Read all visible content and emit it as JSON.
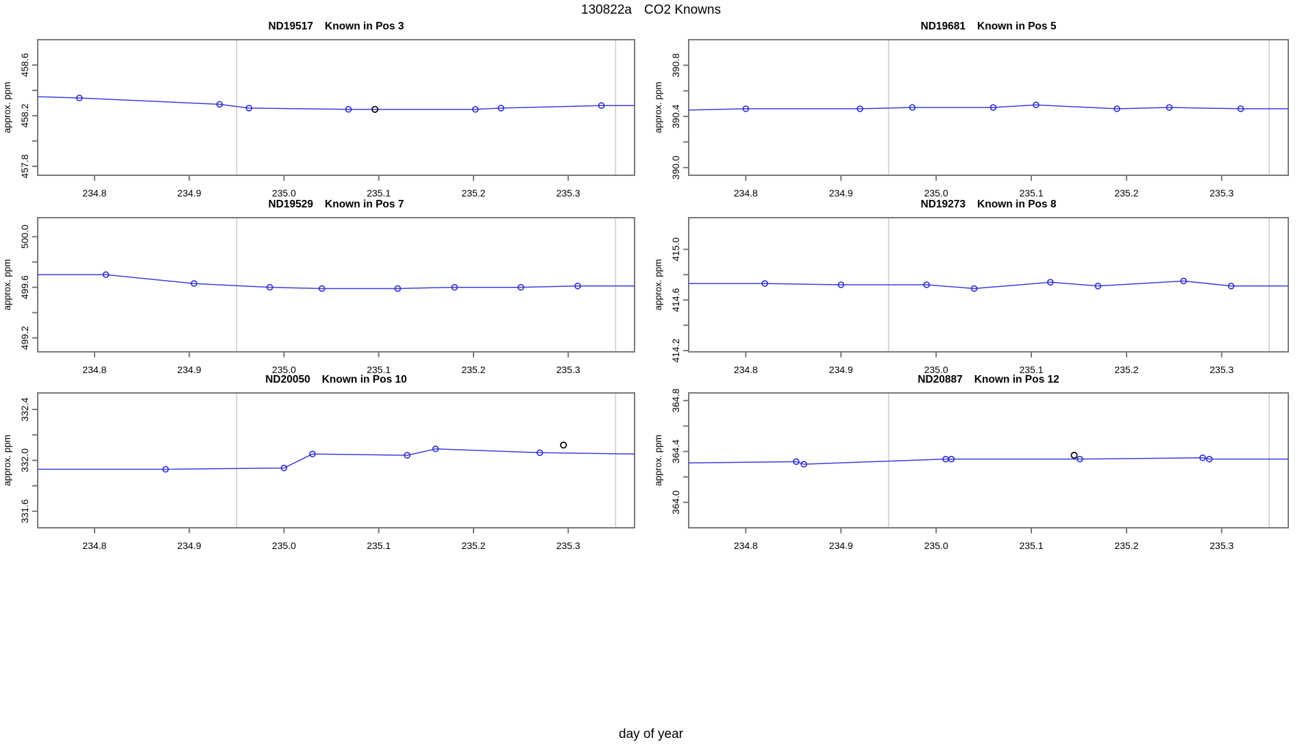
{
  "figure_title": {
    "run_id": "130822a",
    "text": "CO2 Knowns"
  },
  "figure_xlabel": "day of year",
  "colors": {
    "series_line": "#3b3bdf",
    "series_marker": "#2a2ad0",
    "highlight_marker": "#000000",
    "grid_vline": "#cdcdcd",
    "panel_border": "#787878",
    "tick_text": "#000000"
  },
  "chart_data": [
    {
      "type": "line",
      "instrument": "ND19517",
      "title_label": "Known in Pos 3",
      "ylabel": "approx. ppm",
      "xlim": [
        234.74,
        235.37
      ],
      "ylim": [
        457.73,
        458.8
      ],
      "xticks": [
        234.8,
        234.9,
        235.0,
        235.1,
        235.2,
        235.3
      ],
      "yticks_major": [
        457.8,
        458.2,
        458.6
      ],
      "yticks_minor": [
        458.0,
        458.4
      ],
      "vlines": [
        234.95,
        235.35
      ],
      "line": [
        [
          234.74,
          458.35
        ],
        [
          234.784,
          458.34
        ],
        [
          234.932,
          458.29
        ],
        [
          234.963,
          458.26
        ],
        [
          235.068,
          458.25
        ],
        [
          235.096,
          458.25
        ],
        [
          235.202,
          458.25
        ],
        [
          235.229,
          458.26
        ],
        [
          235.335,
          458.28
        ],
        [
          235.37,
          458.28
        ]
      ],
      "markers": [
        [
          234.784,
          458.34
        ],
        [
          234.932,
          458.29
        ],
        [
          234.963,
          458.26
        ],
        [
          235.068,
          458.25
        ],
        [
          235.202,
          458.25
        ],
        [
          235.229,
          458.26
        ],
        [
          235.335,
          458.28
        ]
      ],
      "black_markers": [
        [
          235.096,
          458.25
        ]
      ]
    },
    {
      "type": "line",
      "instrument": "ND19681",
      "title_label": "Known in Pos 5",
      "ylabel": "approx. ppm",
      "xlim": [
        234.74,
        235.37
      ],
      "ylim": [
        389.94,
        391.0
      ],
      "xticks": [
        234.8,
        234.9,
        235.0,
        235.1,
        235.2,
        235.3
      ],
      "yticks_major": [
        390.0,
        390.4,
        390.8
      ],
      "yticks_minor": [
        390.2,
        390.6
      ],
      "vlines": [
        234.95,
        235.35
      ],
      "line": [
        [
          234.74,
          390.45
        ],
        [
          234.8,
          390.46
        ],
        [
          234.92,
          390.46
        ],
        [
          234.975,
          390.47
        ],
        [
          235.06,
          390.47
        ],
        [
          235.105,
          390.49
        ],
        [
          235.19,
          390.46
        ],
        [
          235.245,
          390.47
        ],
        [
          235.32,
          390.46
        ],
        [
          235.37,
          390.46
        ]
      ],
      "markers": [
        [
          234.8,
          390.46
        ],
        [
          234.92,
          390.46
        ],
        [
          234.975,
          390.47
        ],
        [
          235.06,
          390.47
        ],
        [
          235.105,
          390.49
        ],
        [
          235.19,
          390.46
        ],
        [
          235.245,
          390.47
        ],
        [
          235.32,
          390.46
        ]
      ],
      "black_markers": []
    },
    {
      "type": "line",
      "instrument": "ND19529",
      "title_label": "Known in Pos 7",
      "ylabel": "approx. ppm",
      "xlim": [
        234.74,
        235.37
      ],
      "ylim": [
        499.09,
        500.15
      ],
      "xticks": [
        234.8,
        234.9,
        235.0,
        235.1,
        235.2,
        235.3
      ],
      "yticks_major": [
        499.2,
        499.6,
        500.0
      ],
      "yticks_minor": [
        499.4,
        499.8
      ],
      "vlines": [
        234.95,
        235.35
      ],
      "line": [
        [
          234.74,
          499.7
        ],
        [
          234.812,
          499.7
        ],
        [
          234.905,
          499.63
        ],
        [
          234.985,
          499.6
        ],
        [
          235.04,
          499.59
        ],
        [
          235.12,
          499.59
        ],
        [
          235.18,
          499.6
        ],
        [
          235.25,
          499.6
        ],
        [
          235.31,
          499.61
        ],
        [
          235.37,
          499.61
        ]
      ],
      "markers": [
        [
          234.812,
          499.7
        ],
        [
          234.905,
          499.63
        ],
        [
          234.985,
          499.6
        ],
        [
          235.04,
          499.59
        ],
        [
          235.12,
          499.59
        ],
        [
          235.18,
          499.6
        ],
        [
          235.25,
          499.6
        ],
        [
          235.31,
          499.61
        ]
      ],
      "black_markers": []
    },
    {
      "type": "line",
      "instrument": "ND19273",
      "title_label": "Known in Pos 8",
      "ylabel": "approx. ppm",
      "xlim": [
        234.74,
        235.37
      ],
      "ylim": [
        414.19,
        415.25
      ],
      "xticks": [
        234.8,
        234.9,
        235.0,
        235.1,
        235.2,
        235.3
      ],
      "yticks_major": [
        414.2,
        414.6,
        415.0
      ],
      "yticks_minor": [
        414.4,
        414.8
      ],
      "vlines": [
        234.95,
        235.35
      ],
      "line": [
        [
          234.74,
          414.73
        ],
        [
          234.82,
          414.73
        ],
        [
          234.9,
          414.72
        ],
        [
          234.99,
          414.72
        ],
        [
          235.04,
          414.69
        ],
        [
          235.12,
          414.74
        ],
        [
          235.17,
          414.71
        ],
        [
          235.26,
          414.75
        ],
        [
          235.31,
          414.71
        ],
        [
          235.37,
          414.71
        ]
      ],
      "markers": [
        [
          234.82,
          414.73
        ],
        [
          234.9,
          414.72
        ],
        [
          234.99,
          414.72
        ],
        [
          235.04,
          414.69
        ],
        [
          235.12,
          414.74
        ],
        [
          235.17,
          414.71
        ],
        [
          235.26,
          414.75
        ],
        [
          235.31,
          414.71
        ]
      ],
      "black_markers": []
    },
    {
      "type": "line",
      "instrument": "ND20050",
      "title_label": "Known in Pos 10",
      "ylabel": "approx. ppm",
      "xlim": [
        234.74,
        235.37
      ],
      "ylim": [
        331.47,
        332.53
      ],
      "xticks": [
        234.8,
        234.9,
        235.0,
        235.1,
        235.2,
        235.3
      ],
      "yticks_major": [
        331.6,
        332.0,
        332.4
      ],
      "yticks_minor": [
        331.8,
        332.2
      ],
      "vlines": [
        234.95,
        235.35
      ],
      "line": [
        [
          234.74,
          331.93
        ],
        [
          234.875,
          331.93
        ],
        [
          235.0,
          331.94
        ],
        [
          235.03,
          332.05
        ],
        [
          235.13,
          332.04
        ],
        [
          235.16,
          332.09
        ],
        [
          235.27,
          332.06
        ],
        [
          235.37,
          332.05
        ]
      ],
      "markers": [
        [
          234.875,
          331.93
        ],
        [
          235.0,
          331.94
        ],
        [
          235.03,
          332.05
        ],
        [
          235.13,
          332.04
        ],
        [
          235.16,
          332.09
        ],
        [
          235.27,
          332.06
        ]
      ],
      "black_markers": [
        [
          235.295,
          332.12
        ]
      ]
    },
    {
      "type": "line",
      "instrument": "ND20887",
      "title_label": "Known in Pos 12",
      "ylabel": "approx. ppm",
      "xlim": [
        234.74,
        235.37
      ],
      "ylim": [
        363.8,
        364.86
      ],
      "xticks": [
        234.8,
        234.9,
        235.0,
        235.1,
        235.2,
        235.3
      ],
      "yticks_major": [
        364.0,
        364.4,
        364.8
      ],
      "yticks_minor": [
        364.2,
        364.6
      ],
      "vlines": [
        234.95,
        235.35
      ],
      "line": [
        [
          234.74,
          364.31
        ],
        [
          234.853,
          364.32
        ],
        [
          234.861,
          364.3
        ],
        [
          235.01,
          364.34
        ],
        [
          235.016,
          364.34
        ],
        [
          235.151,
          364.34
        ],
        [
          235.28,
          364.35
        ],
        [
          235.287,
          364.34
        ],
        [
          235.37,
          364.34
        ]
      ],
      "markers": [
        [
          234.853,
          364.32
        ],
        [
          234.861,
          364.3
        ],
        [
          235.01,
          364.34
        ],
        [
          235.016,
          364.34
        ],
        [
          235.151,
          364.34
        ],
        [
          235.28,
          364.35
        ],
        [
          235.287,
          364.34
        ]
      ],
      "black_markers": [
        [
          235.145,
          364.37
        ]
      ]
    }
  ]
}
